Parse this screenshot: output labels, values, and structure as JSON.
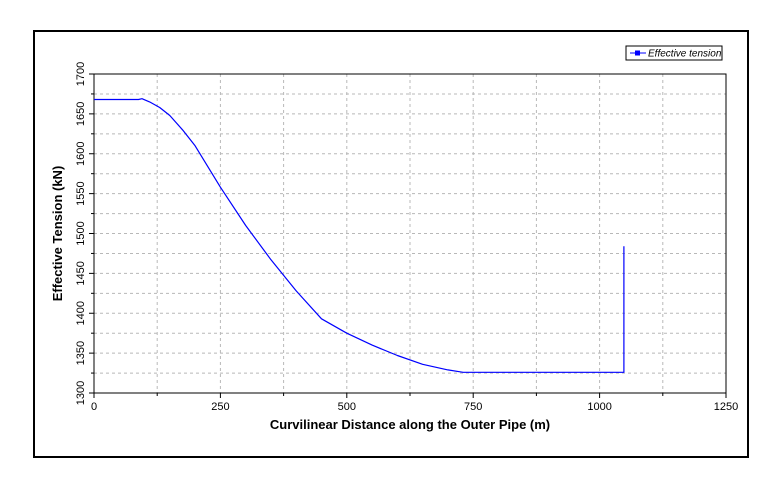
{
  "chart_data": {
    "type": "line",
    "title": "",
    "xlabel": "Curvilinear Distance along the Outer Pipe (m)",
    "ylabel": "Effective Tension (kN)",
    "xlim": [
      0,
      1250
    ],
    "ylim": [
      1300,
      1700
    ],
    "xticks": [
      0,
      250,
      500,
      750,
      1000,
      1250
    ],
    "yticks": [
      1300,
      1350,
      1400,
      1450,
      1500,
      1550,
      1600,
      1650,
      1700
    ],
    "grid": true,
    "legend_position": "top-right",
    "series": [
      {
        "name": "Effective tension",
        "color": "#0000ff",
        "x": [
          0,
          40,
          88,
          95,
          110,
          130,
          150,
          175,
          200,
          250,
          300,
          350,
          400,
          450,
          500,
          550,
          600,
          650,
          700,
          730,
          760,
          800,
          900,
          1000,
          1048,
          1048
        ],
        "y": [
          1668,
          1668,
          1668,
          1669,
          1665,
          1658,
          1648,
          1630,
          1610,
          1558,
          1510,
          1467,
          1428,
          1393,
          1375,
          1360,
          1347,
          1336,
          1329,
          1326,
          1326,
          1326,
          1326,
          1326,
          1326,
          1484
        ]
      }
    ]
  }
}
